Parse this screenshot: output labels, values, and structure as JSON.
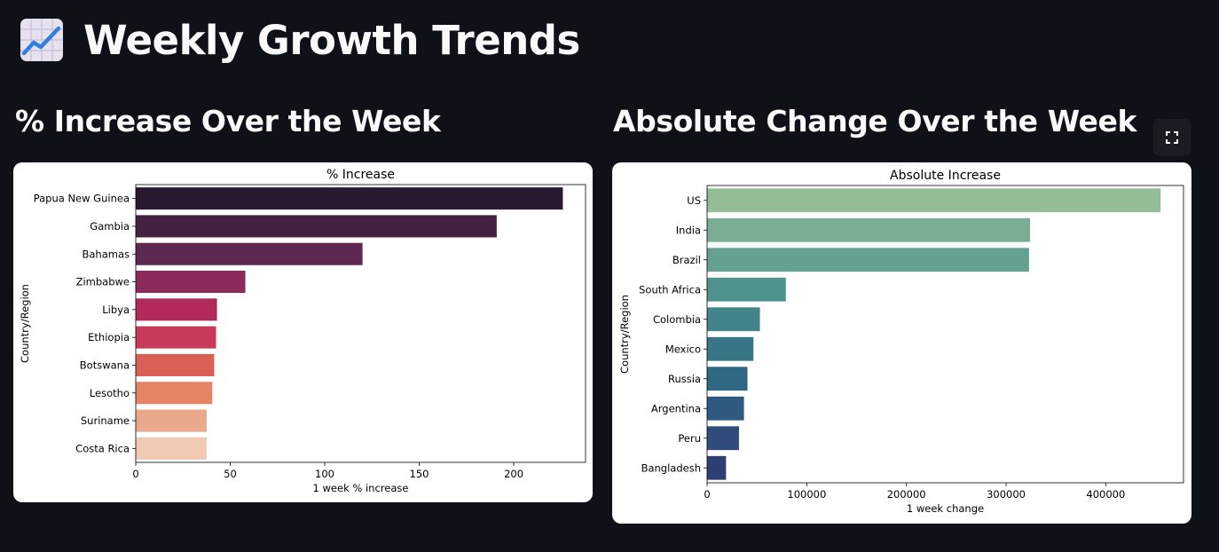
{
  "header": {
    "title": "Weekly Growth Trends",
    "icon": "chart-increasing-icon"
  },
  "left_section": {
    "title": "% Increase Over the Week"
  },
  "right_section": {
    "title": "Absolute Change Over the Week",
    "fullscreen_icon": "fullscreen-icon"
  },
  "chart_data": [
    {
      "type": "bar",
      "orientation": "horizontal",
      "title": "% Increase",
      "xlabel": "1 week % increase",
      "ylabel": "Country/Region",
      "categories": [
        "Papua New Guinea",
        "Gambia",
        "Bahamas",
        "Zimbabwe",
        "Libya",
        "Ethiopia",
        "Botswana",
        "Lesotho",
        "Suriname",
        "Costa Rica"
      ],
      "values": [
        226,
        191,
        120,
        58,
        43,
        42.5,
        41.5,
        40.5,
        37.5,
        37.5
      ],
      "xlim": [
        0,
        238
      ],
      "xticks": [
        0,
        50,
        100,
        150,
        200
      ],
      "xtick_labels": [
        "0",
        "50",
        "100",
        "150",
        "200"
      ],
      "palette": "rocket",
      "colors": [
        "#2a1a31",
        "#442041",
        "#5e2850",
        "#8b2b5a",
        "#b12a59",
        "#c73b58",
        "#da5f54",
        "#e38464",
        "#eaa98a",
        "#efc9b2"
      ],
      "grid": false
    },
    {
      "type": "bar",
      "orientation": "horizontal",
      "title": "Absolute Increase",
      "xlabel": "1 week change",
      "ylabel": "Country/Region",
      "categories": [
        "US",
        "India",
        "Brazil",
        "South Africa",
        "Colombia",
        "Mexico",
        "Russia",
        "Argentina",
        "Peru",
        "Bangladesh"
      ],
      "values": [
        455000,
        324000,
        323000,
        79000,
        53000,
        46500,
        40500,
        37000,
        32000,
        19000
      ],
      "xlim": [
        0,
        478000
      ],
      "xticks": [
        0,
        100000,
        200000,
        300000,
        400000
      ],
      "xtick_labels": [
        "0",
        "100000",
        "200000",
        "300000",
        "400000"
      ],
      "palette": "crest",
      "colors": [
        "#94bc97",
        "#7aae94",
        "#65a191",
        "#4f928e",
        "#43848b",
        "#387587",
        "#306783",
        "#2f5a80",
        "#304c7c",
        "#2f3e74"
      ],
      "grid": false
    }
  ]
}
